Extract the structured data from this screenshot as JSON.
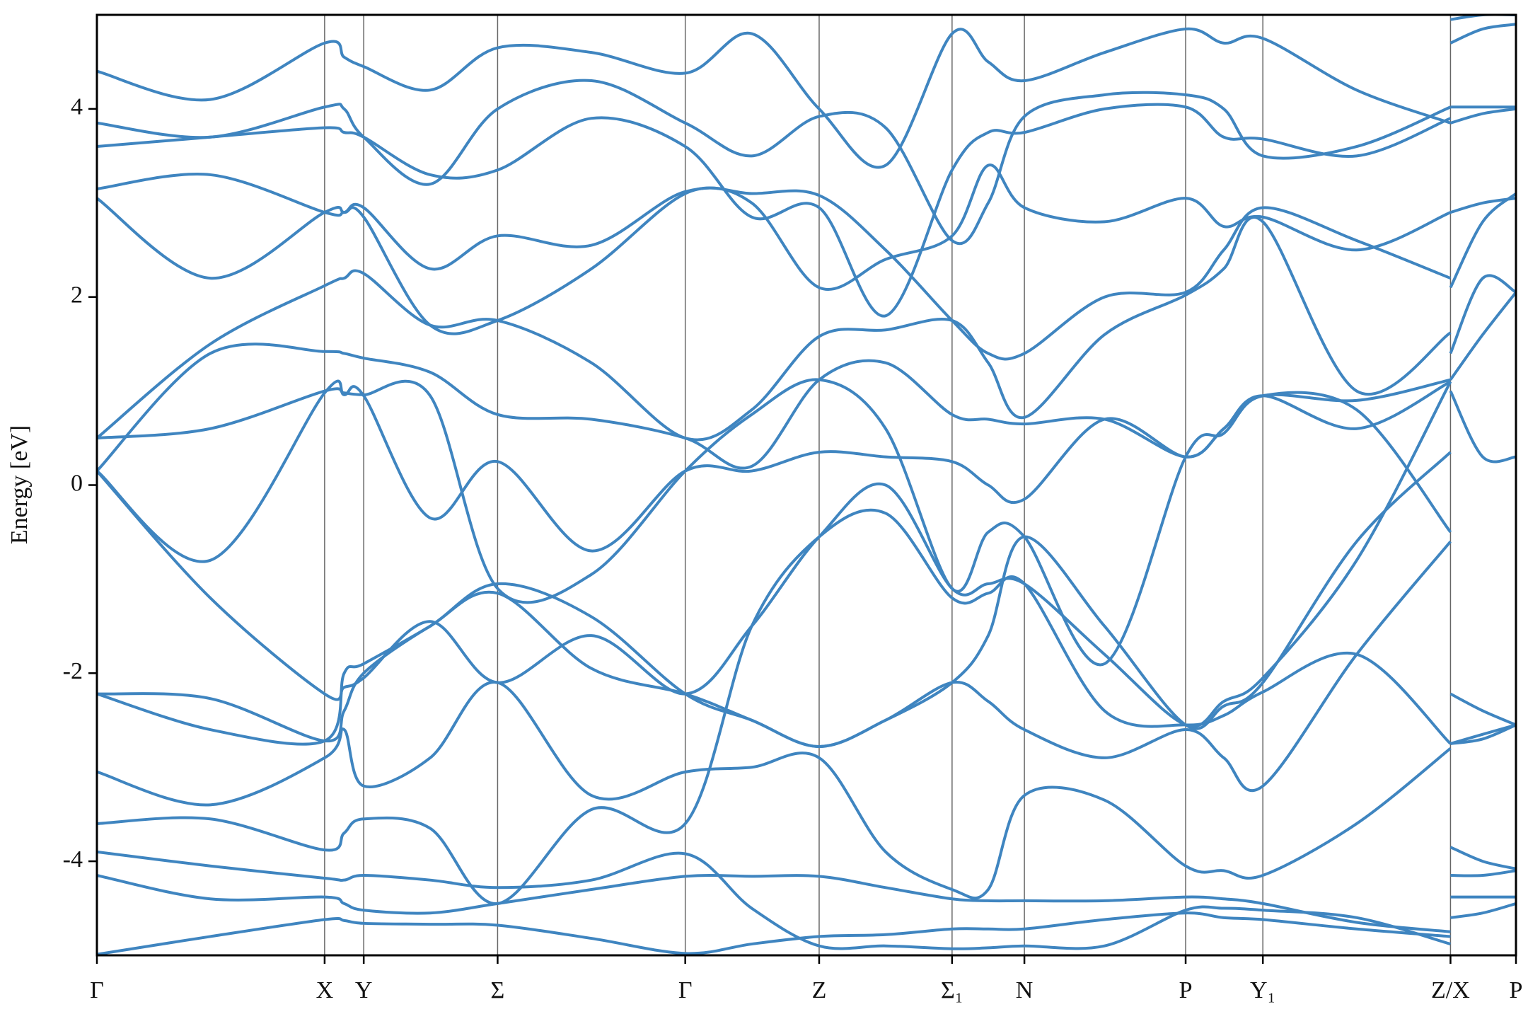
{
  "chart_data": {
    "type": "line",
    "y_label": "Energy [eV]",
    "color": "#3f85c0",
    "grid": true,
    "xlim": [
      0,
      1452
    ],
    "xticks": [
      {
        "value": 0,
        "label": "Γ"
      },
      {
        "value": 233,
        "label": "X"
      },
      {
        "value": 273,
        "label": "Y"
      },
      {
        "value": 410,
        "label": "Σ"
      },
      {
        "value": 602,
        "label": "Γ"
      },
      {
        "value": 739,
        "label": "Z"
      },
      {
        "value": 875,
        "label": "Σ₁"
      },
      {
        "value": 949,
        "label": "N"
      },
      {
        "value": 1114,
        "label": "P"
      },
      {
        "value": 1193,
        "label": "Y₁"
      },
      {
        "value": 1385,
        "label": "Z/X"
      },
      {
        "value": 1452,
        "label": "P"
      }
    ],
    "ylim": [
      -5,
      5
    ],
    "yticks": [
      -4,
      -2,
      0,
      2,
      4
    ],
    "x": [
      0,
      116,
      233,
      253,
      273,
      341,
      410,
      506,
      602,
      670,
      739,
      807,
      875,
      912,
      949,
      1031,
      1114,
      1153,
      1193,
      1289,
      1385,
      1385,
      1385,
      1418,
      1452
    ],
    "series": [
      {
        "values": [
          -4.99,
          -4.8,
          -4.62,
          -4.63,
          -4.66,
          -4.67,
          -4.68,
          -4.82,
          -4.98,
          -4.88,
          -4.8,
          -4.78,
          -4.72,
          -4.72,
          -4.72,
          -4.62,
          -4.55,
          -4.6,
          -4.62,
          -4.72,
          -4.8,
          null,
          -4.6,
          -4.55,
          -4.45
        ]
      },
      {
        "values": [
          -4.15,
          -4.4,
          -4.38,
          -4.45,
          -4.52,
          -4.55,
          -4.45,
          -4.3,
          -4.16,
          -4.16,
          -4.16,
          -4.28,
          -4.4,
          -4.42,
          -4.42,
          -4.42,
          -4.38,
          -4.4,
          -4.45,
          -4.65,
          -4.75,
          null,
          -4.38,
          -4.38,
          -4.38
        ]
      },
      {
        "values": [
          -3.9,
          -4.05,
          -4.18,
          -4.2,
          -4.15,
          -4.2,
          -4.28,
          -4.2,
          -3.92,
          -4.5,
          -4.9,
          -4.9,
          -4.93,
          -4.92,
          -4.9,
          -4.9,
          -4.52,
          -4.5,
          -4.52,
          -4.6,
          -4.88,
          null,
          -4.15,
          -4.15,
          -4.1
        ]
      },
      {
        "values": [
          -3.6,
          -3.55,
          -3.88,
          -3.7,
          -3.55,
          -3.65,
          -4.45,
          -3.45,
          -3.6,
          -1.5,
          -0.55,
          -0.3,
          -1.2,
          -1.15,
          -1.05,
          -2.4,
          -2.55,
          -2.45,
          -2.2,
          -1.8,
          -2.75,
          null,
          -3.85,
          -4.0,
          -4.08
        ]
      },
      {
        "values": [
          -3.05,
          -3.4,
          -2.9,
          -2.6,
          -3.2,
          -2.9,
          -2.1,
          -3.3,
          -3.05,
          -3.0,
          -2.9,
          -3.9,
          -4.3,
          -4.3,
          -3.3,
          -3.35,
          -4.05,
          -4.1,
          -4.15,
          -3.6,
          -2.8,
          null,
          -2.75,
          -2.65,
          -2.55
        ]
      },
      {
        "values": [
          -2.22,
          -2.27,
          -2.72,
          -2.4,
          -2.0,
          -1.5,
          -1.15,
          -1.95,
          -2.22,
          -2.5,
          -2.78,
          -2.5,
          -2.1,
          -2.3,
          -2.6,
          -2.9,
          -2.6,
          -2.9,
          -3.2,
          -1.8,
          -0.6,
          null,
          -2.75,
          -2.7,
          -2.55
        ]
      },
      {
        "values": [
          -2.22,
          -2.6,
          -2.72,
          -2.0,
          -1.9,
          -1.5,
          -1.05,
          -1.4,
          -2.22,
          -2.5,
          -2.78,
          -2.5,
          -2.1,
          -1.6,
          -0.55,
          -1.5,
          -2.55,
          -2.35,
          -2.1,
          -0.6,
          0.35,
          null,
          -2.22,
          -2.4,
          -2.55
        ]
      },
      {
        "values": [
          0.15,
          -1.2,
          -2.22,
          -2.15,
          -2.05,
          -1.45,
          -2.1,
          -1.6,
          -2.22,
          -1.5,
          -0.55,
          0.0,
          -1.1,
          -1.05,
          -1.05,
          -1.8,
          -2.55,
          -2.3,
          -2.05,
          -0.8,
          1.1,
          null,
          1.0,
          0.3,
          0.3
        ]
      },
      {
        "values": [
          0.15,
          -0.8,
          0.98,
          0.96,
          0.95,
          -0.35,
          0.25,
          -0.7,
          0.15,
          0.15,
          0.35,
          0.3,
          0.25,
          0.0,
          -0.15,
          0.7,
          0.3,
          0.6,
          0.95,
          0.9,
          1.12,
          null,
          1.12,
          1.6,
          2.05
        ]
      },
      {
        "values": [
          0.5,
          0.6,
          1.0,
          0.98,
          0.96,
          0.95,
          -1.1,
          -0.95,
          0.15,
          0.75,
          1.12,
          0.6,
          -1.1,
          -0.5,
          -0.55,
          -1.9,
          0.3,
          0.55,
          0.95,
          0.8,
          -0.5,
          null,
          1.4,
          2.2,
          2.05
        ]
      },
      {
        "values": [
          0.15,
          1.4,
          1.42,
          1.4,
          1.35,
          1.2,
          0.75,
          0.7,
          0.5,
          0.2,
          1.12,
          1.3,
          0.75,
          0.7,
          0.65,
          0.7,
          0.3,
          0.6,
          0.95,
          0.6,
          1.1,
          null,
          2.1,
          2.8,
          3.1
        ]
      },
      {
        "values": [
          0.5,
          1.5,
          2.12,
          2.2,
          2.25,
          1.7,
          1.75,
          1.3,
          0.5,
          0.8,
          1.58,
          1.65,
          1.75,
          1.3,
          0.72,
          1.6,
          2.02,
          2.3,
          2.8,
          1.0,
          1.62,
          null,
          2.9,
          3.0,
          3.05
        ]
      },
      {
        "values": [
          3.05,
          2.2,
          2.9,
          2.9,
          2.85,
          1.7,
          1.75,
          2.3,
          3.1,
          3.1,
          3.08,
          2.5,
          1.75,
          1.4,
          1.4,
          2.0,
          2.05,
          2.5,
          2.95,
          2.6,
          2.2,
          null,
          3.85,
          3.95,
          4.0
        ]
      },
      {
        "values": [
          3.15,
          3.3,
          2.9,
          2.9,
          2.95,
          2.3,
          2.65,
          2.55,
          3.12,
          3.0,
          2.1,
          2.4,
          2.65,
          3.4,
          2.95,
          2.8,
          3.05,
          2.75,
          2.85,
          2.5,
          2.9,
          null,
          4.02,
          4.02,
          4.02
        ]
      },
      {
        "values": [
          3.6,
          3.7,
          3.8,
          3.75,
          3.7,
          3.3,
          3.35,
          3.9,
          3.6,
          2.85,
          2.95,
          1.8,
          3.35,
          3.75,
          3.75,
          4.0,
          4.02,
          3.7,
          3.68,
          3.5,
          3.9,
          null,
          4.7,
          4.85,
          4.9
        ]
      },
      {
        "values": [
          3.85,
          3.7,
          4.02,
          4.0,
          3.7,
          3.2,
          4.0,
          4.3,
          3.85,
          3.5,
          3.92,
          3.8,
          2.6,
          3.0,
          3.92,
          4.15,
          4.15,
          4.0,
          3.5,
          3.6,
          4.02,
          null,
          4.95,
          5.0,
          5.0
        ]
      },
      {
        "values": [
          4.4,
          4.1,
          4.7,
          4.55,
          4.45,
          4.2,
          4.65,
          4.6,
          4.38,
          4.8,
          4.0,
          3.4,
          4.8,
          4.5,
          4.3,
          4.6,
          4.85,
          4.7,
          4.75,
          4.2,
          3.85,
          null,
          null,
          null,
          null
        ]
      }
    ]
  }
}
